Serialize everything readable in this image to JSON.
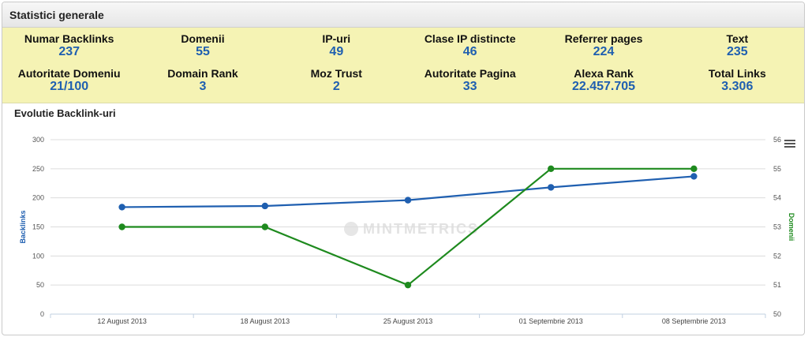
{
  "panel": {
    "title": "Statistici generale"
  },
  "stats": [
    {
      "label": "Numar Backlinks",
      "value": "237"
    },
    {
      "label": "Domenii",
      "value": "55"
    },
    {
      "label": "IP-uri",
      "value": "49"
    },
    {
      "label": "Clase IP distincte",
      "value": "46"
    },
    {
      "label": "Referrer pages",
      "value": "224"
    },
    {
      "label": "Text",
      "value": "235"
    },
    {
      "label": "Autoritate Domeniu",
      "value": "21/100"
    },
    {
      "label": "Domain Rank",
      "value": "3"
    },
    {
      "label": "Moz Trust",
      "value": "2"
    },
    {
      "label": "Autoritate Pagina",
      "value": "33"
    },
    {
      "label": "Alexa Rank",
      "value": "22.457.705"
    },
    {
      "label": "Total Links",
      "value": "3.306"
    }
  ],
  "watermark": "MINTMETRICS",
  "colors": {
    "backlinks": "#1f5fb0",
    "domenii": "#1e8a1e",
    "stats_bg": "#f5f3b4"
  },
  "chart_data": {
    "type": "line",
    "title": "Evolutie Backlink-uri",
    "categories": [
      "12 August 2013",
      "18 August 2013",
      "25 August 2013",
      "01 Septembrie 2013",
      "08 Septembrie 2013"
    ],
    "series": [
      {
        "name": "Backlinks",
        "axis": "left",
        "values": [
          184,
          186,
          196,
          218,
          237
        ]
      },
      {
        "name": "Domenii",
        "axis": "right",
        "values": [
          53,
          53,
          51,
          55,
          55
        ]
      }
    ],
    "ylabel_left": "Backlinks",
    "ylabel_right": "Domenii",
    "ylim_left": [
      0,
      300
    ],
    "yticks_left": [
      0,
      50,
      100,
      150,
      200,
      250,
      300
    ],
    "ylim_right": [
      50,
      56
    ],
    "yticks_right": [
      50,
      51,
      52,
      53,
      54,
      55,
      56
    ],
    "grid": true
  }
}
